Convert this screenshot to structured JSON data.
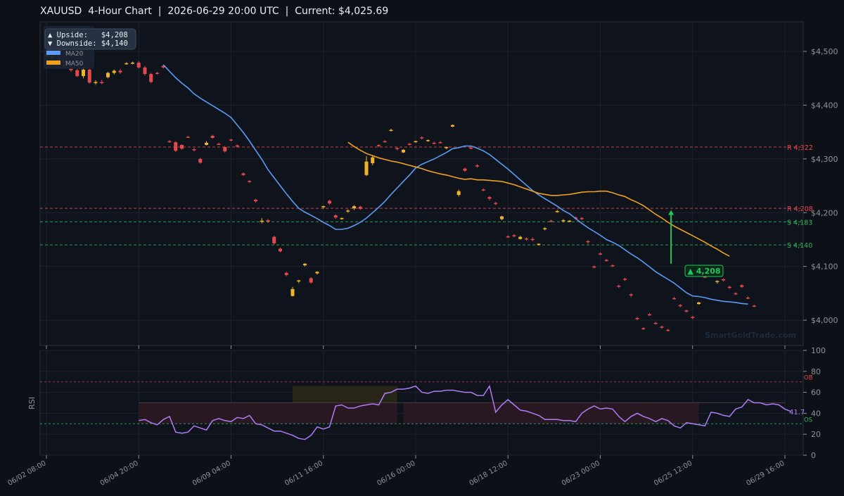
{
  "header": {
    "title": "XAUUSD  4-Hour Chart  |  2026-06-29 20:00 UTC  |  Current: $4,025.69"
  },
  "colors": {
    "background": "#0d1017",
    "panel": "#0f131b",
    "grid": "#1c222c",
    "bull": "#f0b429",
    "bear": "#e5484d",
    "ma20": "#5b9bf5",
    "ma50": "#f0a020",
    "resistance": "#e5484d",
    "support": "#2fb85e",
    "rsi": "#b07cf5",
    "arrow": "#22c55e"
  },
  "chart_data": [
    {
      "type": "candlestick",
      "title": "XAUUSD  4-Hour Chart  |  2026-06-29 20:00 UTC  |  Current: $4,025.69",
      "current_price": 4025.69,
      "ylim": [
        3953,
        4555
      ],
      "y_ticks": [
        4000,
        4100,
        4200,
        4300,
        4400,
        4500
      ],
      "y_tick_labels": [
        "$4,000",
        "$4,100",
        "$4,200",
        "$4,300",
        "$4,400",
        "$4,500"
      ],
      "x_tick_labels": [
        "06/02 08:00",
        "06/04 20:00",
        "06/09 04:00",
        "06/11 16:00",
        "06/16 00:00",
        "06/18 12:00",
        "06/23 00:00",
        "06/25 12:00",
        "06/29 16:00"
      ],
      "x_tick_index": [
        0,
        15,
        30,
        45,
        60,
        75,
        90,
        105,
        120
      ],
      "candles_ohlc": [
        [
          4492,
          4497,
          4489,
          4494
        ],
        [
          4494,
          4498,
          4485,
          4487
        ],
        [
          4487,
          4492,
          4480,
          4483
        ],
        [
          4483,
          4486,
          4470,
          4472
        ],
        [
          4472,
          4476,
          4462,
          4465
        ],
        [
          4465,
          4468,
          4452,
          4454
        ],
        [
          4454,
          4470,
          4450,
          4466
        ],
        [
          4466,
          4468,
          4440,
          4442
        ],
        [
          4442,
          4446,
          4438,
          4443
        ],
        [
          4443,
          4447,
          4439,
          4441
        ],
        [
          4452,
          4462,
          4450,
          4460
        ],
        [
          4460,
          4466,
          4457,
          4464
        ],
        [
          4464,
          4467,
          4458,
          4461
        ],
        [
          4477,
          4480,
          4475,
          4478
        ],
        [
          4478,
          4481,
          4476,
          4479
        ],
        [
          4479,
          4482,
          4468,
          4470
        ],
        [
          4470,
          4473,
          4455,
          4458
        ],
        [
          4458,
          4460,
          4441,
          4443
        ],
        [
          4460,
          4462,
          4457,
          4459
        ],
        [
          4473,
          4475,
          4468,
          4470
        ],
        [
          4333,
          4335,
          4330,
          4331
        ],
        [
          4331,
          4333,
          4313,
          4315
        ],
        [
          4326,
          4327,
          4317,
          4319
        ],
        [
          4341,
          4343,
          4339,
          4340
        ],
        [
          4318,
          4320,
          4314,
          4316
        ],
        [
          4300,
          4302,
          4291,
          4293
        ],
        [
          4326,
          4333,
          4325,
          4330
        ],
        [
          4343,
          4345,
          4338,
          4339
        ],
        [
          4328,
          4330,
          4326,
          4327
        ],
        [
          4322,
          4324,
          4312,
          4314
        ],
        [
          4336,
          4337,
          4333,
          4334
        ],
        [
          4325,
          4327,
          4321,
          4323
        ],
        [
          4273,
          4275,
          4268,
          4270
        ],
        [
          4259,
          4261,
          4255,
          4257
        ],
        [
          4224,
          4226,
          4219,
          4221
        ],
        [
          4183,
          4190,
          4180,
          4185
        ],
        [
          4186,
          4188,
          4181,
          4183
        ],
        [
          4155,
          4157,
          4141,
          4143
        ],
        [
          4133,
          4135,
          4126,
          4128
        ],
        [
          4088,
          4090,
          4082,
          4084
        ],
        [
          4045,
          4062,
          4044,
          4058
        ],
        [
          4072,
          4075,
          4069,
          4074
        ],
        [
          4102,
          4106,
          4100,
          4105
        ],
        [
          4078,
          4080,
          4068,
          4070
        ],
        [
          4087,
          4091,
          4085,
          4090
        ],
        [
          4210,
          4213,
          4207,
          4212
        ],
        [
          4222,
          4224,
          4215,
          4217
        ],
        [
          4195,
          4197,
          4188,
          4191
        ],
        [
          4189,
          4191,
          4187,
          4190
        ],
        [
          4203,
          4206,
          4200,
          4204
        ],
        [
          4208,
          4214,
          4205,
          4212
        ],
        [
          4211,
          4213,
          4205,
          4207
        ],
        [
          4270,
          4305,
          4268,
          4295
        ],
        [
          4292,
          4307,
          4288,
          4303
        ],
        [
          4326,
          4327,
          4322,
          4324
        ],
        [
          4333,
          4335,
          4330,
          4332
        ],
        [
          4353,
          4356,
          4351,
          4354
        ],
        [
          4320,
          4322,
          4316,
          4319
        ],
        [
          4312,
          4318,
          4311,
          4317
        ],
        [
          4328,
          4330,
          4325,
          4326
        ],
        [
          4332,
          4334,
          4330,
          4333
        ],
        [
          4340,
          4342,
          4336,
          4338
        ],
        [
          4333,
          4336,
          4332,
          4335
        ],
        [
          4330,
          4332,
          4327,
          4329
        ],
        [
          4331,
          4333,
          4329,
          4330
        ],
        [
          4320,
          4323,
          4318,
          4322
        ],
        [
          4360,
          4364,
          4359,
          4363
        ],
        [
          4233,
          4243,
          4230,
          4240
        ],
        [
          4282,
          4284,
          4276,
          4278
        ],
        [
          4321,
          4323,
          4318,
          4319
        ],
        [
          4288,
          4290,
          4284,
          4286
        ],
        [
          4243,
          4245,
          4240,
          4242
        ],
        [
          4229,
          4231,
          4223,
          4226
        ],
        [
          4218,
          4220,
          4214,
          4216
        ],
        [
          4188,
          4194,
          4186,
          4193
        ],
        [
          4156,
          4158,
          4153,
          4155
        ],
        [
          4158,
          4160,
          4154,
          4156
        ],
        [
          4151,
          4157,
          4150,
          4155
        ],
        [
          4152,
          4154,
          4148,
          4150
        ],
        [
          4151,
          4154,
          4147,
          4149
        ],
        [
          4141,
          4143,
          4139,
          4142
        ],
        [
          4170,
          4173,
          4167,
          4171
        ],
        [
          4185,
          4187,
          4182,
          4184
        ],
        [
          4202,
          4205,
          4200,
          4203
        ],
        [
          4185,
          4188,
          4182,
          4186
        ],
        [
          4184,
          4186,
          4182,
          4185
        ],
        [
          4191,
          4193,
          4187,
          4189
        ],
        [
          4190,
          4192,
          4186,
          4188
        ],
        [
          4147,
          4149,
          4142,
          4145
        ],
        [
          4100,
          4102,
          4096,
          4098
        ],
        [
          4124,
          4126,
          4121,
          4123
        ],
        [
          4112,
          4114,
          4109,
          4111
        ],
        [
          4102,
          4104,
          4099,
          4101
        ],
        [
          4064,
          4066,
          4060,
          4062
        ],
        [
          4077,
          4079,
          4073,
          4075
        ],
        [
          4048,
          4050,
          4043,
          4046
        ],
        [
          4004,
          4006,
          4000,
          4002
        ],
        [
          3985,
          3987,
          3982,
          3984
        ],
        [
          4011,
          4013,
          4008,
          4010
        ],
        [
          3995,
          3997,
          3992,
          3994
        ],
        [
          3988,
          3990,
          3984,
          3986
        ],
        [
          3982,
          3984,
          3979,
          3981
        ],
        [
          4041,
          4043,
          4038,
          4040
        ],
        [
          4028,
          4030,
          4024,
          4026
        ],
        [
          4018,
          4020,
          4014,
          4016
        ],
        [
          4006,
          4008,
          4002,
          4004
        ],
        [
          4030,
          4034,
          4029,
          4033
        ],
        [
          4081,
          4083,
          4079,
          4080
        ],
        [
          4092,
          4094,
          4089,
          4091
        ],
        [
          4071,
          4074,
          4068,
          4073
        ],
        [
          4076,
          4078,
          4072,
          4074
        ],
        [
          4062,
          4064,
          4058,
          4060
        ],
        [
          4050,
          4052,
          4047,
          4049
        ],
        [
          4065,
          4067,
          4060,
          4062
        ],
        [
          4042,
          4044,
          4039,
          4041
        ],
        [
          4027,
          4029,
          4024,
          4026
        ]
      ],
      "series": [
        {
          "name": "MA20",
          "start_index": 19,
          "values": [
            4475,
            4463,
            4451,
            4441,
            4432,
            4421,
            4413,
            4406,
            4399,
            4392,
            4385,
            4377,
            4363,
            4349,
            4333,
            4316,
            4299,
            4280,
            4265,
            4250,
            4235,
            4221,
            4208,
            4201,
            4195,
            4189,
            4182,
            4176,
            4169,
            4169,
            4171,
            4176,
            4182,
            4190,
            4200,
            4210,
            4221,
            4234,
            4246,
            4258,
            4270,
            4283,
            4290,
            4295,
            4300,
            4306,
            4312,
            4319,
            4321,
            4324,
            4324,
            4320,
            4315,
            4308,
            4299,
            4290,
            4281,
            4271,
            4261,
            4251,
            4241,
            4233,
            4226,
            4219,
            4212,
            4204,
            4198,
            4189,
            4180,
            4172,
            4165,
            4158,
            4150,
            4145,
            4139,
            4131,
            4123,
            4116,
            4108,
            4099,
            4090,
            4083,
            4076,
            4069,
            4060,
            4051,
            4045,
            4044,
            4042,
            4039,
            4037,
            4035,
            4034,
            4033,
            4031,
            4030
          ]
        },
        {
          "name": "MA50",
          "start_index": 49,
          "values": [
            4331,
            4323,
            4316,
            4310,
            4306,
            4302,
            4299,
            4296,
            4294,
            4291,
            4288,
            4285,
            4282,
            4278,
            4275,
            4272,
            4270,
            4267,
            4264,
            4262,
            4263,
            4261,
            4261,
            4260,
            4259,
            4258,
            4255,
            4252,
            4248,
            4244,
            4240,
            4236,
            4234,
            4232,
            4232,
            4233,
            4234,
            4236,
            4238,
            4239,
            4239,
            4240,
            4240,
            4237,
            4233,
            4230,
            4224,
            4219,
            4213,
            4205,
            4197,
            4190,
            4182,
            4175,
            4169,
            4163,
            4157,
            4151,
            4145,
            4138,
            4132,
            4125,
            4119
          ]
        }
      ],
      "levels": [
        {
          "kind": "resistance",
          "value": 4322,
          "label": "R 4,322"
        },
        {
          "kind": "resistance",
          "value": 4208,
          "label": "R 4,208"
        },
        {
          "kind": "support",
          "value": 4183,
          "label": "S 4,183"
        },
        {
          "kind": "support",
          "value": 4140,
          "label": "S 4,140"
        }
      ],
      "legend": {
        "placement": "top-left",
        "upside": "▲ Upside:   $4,208",
        "downside": "▼ Downside: $4,140",
        "items": [
          "MA20",
          "MA50"
        ]
      },
      "target_annotation": {
        "label": "▲ 4,208",
        "from": 4105,
        "to": 4205
      },
      "watermark": "SmartGoldTrade.com"
    },
    {
      "type": "line",
      "ylabel": "RSI",
      "ylim": [
        0,
        100
      ],
      "y_ticks": [
        0,
        20,
        40,
        60,
        80,
        100
      ],
      "overbought": 70,
      "oversold": 30,
      "midline": 50,
      "ob_label": "OB",
      "os_label": "OS",
      "last_value_label": "41.7",
      "start_index": 15,
      "values": [
        33,
        34,
        31,
        29,
        34,
        37,
        22,
        21,
        22,
        28,
        26,
        24,
        33,
        35,
        33,
        32,
        36,
        35,
        38,
        30,
        29,
        26,
        23,
        23,
        21,
        19,
        16,
        15,
        19,
        27,
        25,
        27,
        47,
        48,
        45,
        45,
        47,
        48,
        49,
        48,
        59,
        60,
        63,
        63,
        64,
        66,
        60,
        59,
        61,
        61,
        62,
        62,
        61,
        60,
        60,
        57,
        57,
        66,
        41,
        48,
        53,
        48,
        43,
        42,
        40,
        38,
        34,
        34,
        34,
        33,
        33,
        32,
        40,
        44,
        47,
        44,
        45,
        44,
        37,
        32,
        37,
        40,
        37,
        35,
        32,
        35,
        33,
        28,
        26,
        31,
        30,
        29,
        28,
        41,
        40,
        38,
        37,
        44,
        46,
        53,
        50,
        50,
        48,
        49,
        48,
        44,
        41.7
      ]
    }
  ]
}
